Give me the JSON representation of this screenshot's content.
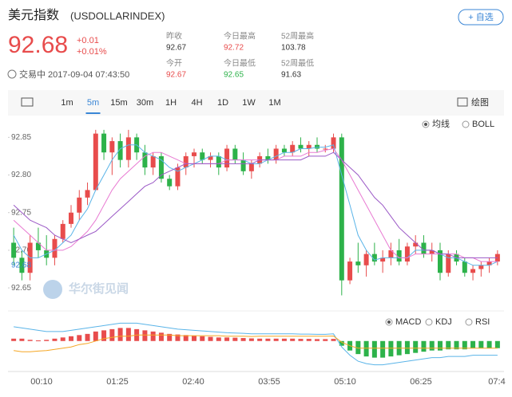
{
  "header": {
    "title": "美元指数",
    "code": "(USDOLLARINDEX)",
    "button": "+ 自选",
    "price": "92.68",
    "change": "+0.01",
    "change_pct": "+0.01%",
    "status": "交易中 2017-09-04 07:43:50"
  },
  "stats": [
    {
      "label": "昨收",
      "value": "92.67"
    },
    {
      "label": "今日最高",
      "value": "92.72"
    },
    {
      "label": "52周最高",
      "value": "103.78"
    },
    {
      "label": "今开",
      "value": "92.67"
    },
    {
      "label": "今日最低",
      "value": "92.65"
    },
    {
      "label": "52周最低",
      "value": "91.63"
    }
  ],
  "toolbar": {
    "intervals": [
      "1m",
      "5m",
      "15m",
      "30m",
      "1H",
      "4H",
      "1D",
      "1W",
      "1M"
    ],
    "draw": "绘图"
  },
  "watermark": "华尔街见闻",
  "chart_data": {
    "type": "candlestick",
    "up_color": "#e84c4c",
    "down_color": "#2db24a",
    "overlays": [
      "均线",
      "BOLL"
    ],
    "indicators": [
      "MACD",
      "KDJ",
      "RSI"
    ],
    "time_labels": [
      "00:10",
      "01:25",
      "02:40",
      "03:55",
      "05:10",
      "06:25",
      "07:4"
    ],
    "ylim": [
      92.63,
      92.88
    ],
    "yticks": [
      92.85,
      {
        "value": 92.8,
        "label": "92.80"
      },
      92.75,
      {
        "value": 92.7,
        "label": "92.70"
      },
      92.65
    ],
    "candles": [
      [
        92.71,
        92.73,
        92.68,
        92.69
      ],
      [
        92.69,
        92.7,
        92.66,
        92.67
      ],
      [
        92.67,
        92.72,
        92.66,
        92.71
      ],
      [
        92.71,
        92.73,
        92.69,
        92.7
      ],
      [
        92.7,
        92.72,
        92.68,
        92.69
      ],
      [
        92.69,
        92.72,
        92.68,
        92.715
      ],
      [
        92.715,
        92.74,
        92.71,
        92.735
      ],
      [
        92.735,
        92.76,
        92.73,
        92.75
      ],
      [
        92.75,
        92.78,
        92.74,
        92.77
      ],
      [
        92.77,
        92.79,
        92.76,
        92.78
      ],
      [
        92.78,
        92.86,
        92.78,
        92.855
      ],
      [
        92.855,
        92.86,
        92.82,
        92.83
      ],
      [
        92.83,
        92.85,
        92.8,
        92.845
      ],
      [
        92.845,
        92.855,
        92.81,
        92.82
      ],
      [
        92.82,
        92.86,
        92.81,
        92.85
      ],
      [
        92.85,
        92.855,
        92.82,
        92.83
      ],
      [
        92.83,
        92.84,
        92.8,
        92.81
      ],
      [
        92.81,
        92.83,
        92.8,
        92.825
      ],
      [
        92.825,
        92.83,
        92.79,
        92.795
      ],
      [
        92.795,
        92.8,
        92.78,
        92.785
      ],
      [
        92.785,
        92.815,
        92.78,
        92.81
      ],
      [
        92.81,
        92.83,
        92.8,
        92.825
      ],
      [
        92.825,
        92.835,
        92.81,
        92.83
      ],
      [
        92.83,
        92.835,
        92.815,
        92.82
      ],
      [
        92.82,
        92.83,
        92.81,
        92.825
      ],
      [
        92.825,
        92.83,
        92.8,
        92.81
      ],
      [
        92.81,
        92.84,
        92.805,
        92.835
      ],
      [
        92.835,
        92.84,
        92.815,
        92.82
      ],
      [
        92.82,
        92.83,
        92.8,
        92.805
      ],
      [
        92.805,
        92.82,
        92.795,
        92.815
      ],
      [
        92.815,
        92.83,
        92.81,
        92.825
      ],
      [
        92.825,
        92.835,
        92.815,
        92.82
      ],
      [
        92.82,
        92.84,
        92.815,
        92.835
      ],
      [
        92.835,
        92.84,
        92.825,
        92.83
      ],
      [
        92.83,
        92.845,
        92.825,
        92.84
      ],
      [
        92.84,
        92.85,
        92.83,
        92.835
      ],
      [
        92.835,
        92.845,
        92.825,
        92.84
      ],
      [
        92.84,
        92.85,
        92.83,
        92.835
      ],
      [
        92.835,
        92.84,
        92.83,
        92.835
      ],
      [
        92.835,
        92.855,
        92.83,
        92.85
      ],
      [
        92.85,
        92.855,
        92.64,
        92.66
      ],
      [
        92.66,
        92.69,
        92.655,
        92.685
      ],
      [
        92.685,
        92.71,
        92.67,
        92.68
      ],
      [
        92.68,
        92.7,
        92.665,
        92.695
      ],
      [
        92.695,
        92.71,
        92.68,
        92.685
      ],
      [
        92.685,
        92.7,
        92.67,
        92.69
      ],
      [
        92.69,
        92.71,
        92.68,
        92.7
      ],
      [
        92.7,
        92.715,
        92.68,
        92.685
      ],
      [
        92.685,
        92.71,
        92.68,
        92.705
      ],
      [
        92.705,
        92.72,
        92.695,
        92.71
      ],
      [
        92.71,
        92.72,
        92.69,
        92.695
      ],
      [
        92.695,
        92.71,
        92.685,
        92.7
      ],
      [
        92.7,
        92.71,
        92.66,
        92.67
      ],
      [
        92.67,
        92.7,
        92.665,
        92.695
      ],
      [
        92.695,
        92.7,
        92.68,
        92.685
      ],
      [
        92.685,
        92.69,
        92.665,
        92.67
      ],
      [
        92.67,
        92.68,
        92.66,
        92.675
      ],
      [
        92.675,
        92.685,
        92.665,
        92.68
      ],
      [
        92.68,
        92.69,
        92.67,
        92.685
      ],
      [
        92.685,
        92.7,
        92.68,
        92.695
      ]
    ],
    "ma": [
      {
        "color": "#5ab4e8",
        "values": [
          92.72,
          92.7,
          92.69,
          92.69,
          92.695,
          92.7,
          92.71,
          92.72,
          92.74,
          92.755,
          92.78,
          92.8,
          92.82,
          92.835,
          92.84,
          92.84,
          92.83,
          92.825,
          92.82,
          92.81,
          92.805,
          92.81,
          92.815,
          92.82,
          92.825,
          92.825,
          92.82,
          92.82,
          92.82,
          92.815,
          92.815,
          92.82,
          92.825,
          92.83,
          92.83,
          92.835,
          92.835,
          92.837,
          92.837,
          92.84,
          92.8,
          92.76,
          92.72,
          92.7,
          92.687,
          92.69,
          92.69,
          92.69,
          92.69,
          92.7,
          92.7,
          92.7,
          92.695,
          92.69,
          92.69,
          92.685,
          92.68,
          92.68,
          92.68,
          92.685
        ]
      },
      {
        "color": "#e87ad2",
        "values": [
          92.74,
          92.73,
          92.72,
          92.71,
          92.7,
          92.7,
          92.7,
          92.705,
          92.715,
          92.725,
          92.74,
          92.76,
          92.78,
          92.795,
          92.805,
          92.815,
          92.825,
          92.83,
          92.83,
          92.825,
          92.82,
          92.815,
          92.815,
          92.815,
          92.815,
          92.815,
          92.82,
          92.82,
          92.82,
          92.82,
          92.82,
          92.82,
          92.82,
          92.825,
          92.825,
          92.825,
          92.83,
          92.83,
          92.833,
          92.835,
          92.82,
          92.8,
          92.78,
          92.76,
          92.74,
          92.72,
          92.7,
          92.69,
          92.69,
          92.695,
          92.695,
          92.695,
          92.695,
          92.695,
          92.695,
          92.69,
          92.69,
          92.685,
          92.685,
          92.685
        ]
      },
      {
        "color": "#9b59c6",
        "values": [
          92.76,
          92.75,
          92.74,
          92.735,
          92.73,
          92.72,
          92.715,
          92.71,
          92.715,
          92.72,
          92.725,
          92.735,
          92.745,
          92.755,
          92.765,
          92.775,
          92.785,
          92.79,
          92.8,
          92.805,
          92.81,
          92.815,
          92.815,
          92.815,
          92.815,
          92.815,
          92.815,
          92.815,
          92.815,
          92.815,
          92.82,
          92.82,
          92.82,
          92.82,
          92.82,
          92.82,
          92.825,
          92.825,
          92.825,
          92.83,
          92.82,
          92.81,
          92.8,
          92.785,
          92.77,
          92.76,
          92.745,
          92.73,
          92.72,
          92.71,
          92.7,
          92.7,
          92.695,
          92.695,
          92.69,
          92.69,
          92.69,
          92.69,
          92.69,
          92.69
        ]
      }
    ],
    "macd_lim": [
      -0.025,
      0.02
    ],
    "macd_hist": [
      0.002,
      0.002,
      0.001,
      0.0005,
      0.001,
      0.002,
      0.003,
      0.004,
      0.005,
      0.006,
      0.008,
      0.009,
      0.01,
      0.011,
      0.011,
      0.01,
      0.009,
      0.008,
      0.007,
      0.006,
      0.0055,
      0.005,
      0.0045,
      0.004,
      0.0035,
      0.003,
      0.003,
      0.0028,
      0.0025,
      0.0022,
      0.002,
      0.002,
      0.002,
      0.002,
      0.002,
      0.0018,
      0.0018,
      0.0016,
      0.0016,
      0.0018,
      -0.004,
      -0.008,
      -0.011,
      -0.013,
      -0.014,
      -0.014,
      -0.013,
      -0.012,
      -0.011,
      -0.01,
      -0.009,
      -0.008,
      -0.008,
      -0.007,
      -0.007,
      -0.007,
      -0.006,
      -0.006,
      -0.006,
      -0.006
    ],
    "macd_lines": [
      {
        "color": "#5ab4e8",
        "values": [
          0.012,
          0.011,
          0.01,
          0.009,
          0.008,
          0.008,
          0.008,
          0.009,
          0.01,
          0.011,
          0.012,
          0.013,
          0.014,
          0.015,
          0.015,
          0.015,
          0.014,
          0.013,
          0.012,
          0.011,
          0.01,
          0.0095,
          0.009,
          0.0085,
          0.008,
          0.0075,
          0.007,
          0.0068,
          0.0065,
          0.006,
          0.006,
          0.006,
          0.006,
          0.006,
          0.006,
          0.0058,
          0.0058,
          0.0056,
          0.0056,
          0.006,
          -0.005,
          -0.012,
          -0.017,
          -0.019,
          -0.02,
          -0.02,
          -0.019,
          -0.018,
          -0.017,
          -0.016,
          -0.015,
          -0.014,
          -0.014,
          -0.013,
          -0.013,
          -0.013,
          -0.012,
          -0.012,
          -0.012,
          -0.012
        ]
      },
      {
        "color": "#f5a623",
        "values": [
          -0.008,
          -0.009,
          -0.009,
          -0.0085,
          -0.008,
          -0.007,
          -0.006,
          -0.005,
          -0.003,
          -0.002,
          0,
          0.002,
          0.003,
          0.004,
          0.004,
          0.005,
          0.005,
          0.005,
          0.005,
          0.005,
          0.0045,
          0.0045,
          0.0045,
          0.0045,
          0.0045,
          0.0045,
          0.004,
          0.004,
          0.004,
          0.0038,
          0.004,
          0.004,
          0.004,
          0.004,
          0.004,
          0.004,
          0.004,
          0.004,
          0.004,
          0.0042,
          -0.001,
          -0.004,
          -0.006,
          -0.006,
          -0.006,
          -0.006,
          -0.006,
          -0.006,
          -0.006,
          -0.006,
          -0.006,
          -0.006,
          -0.006,
          -0.006,
          -0.006,
          -0.006,
          -0.006,
          -0.006,
          -0.006,
          -0.006
        ]
      }
    ]
  }
}
